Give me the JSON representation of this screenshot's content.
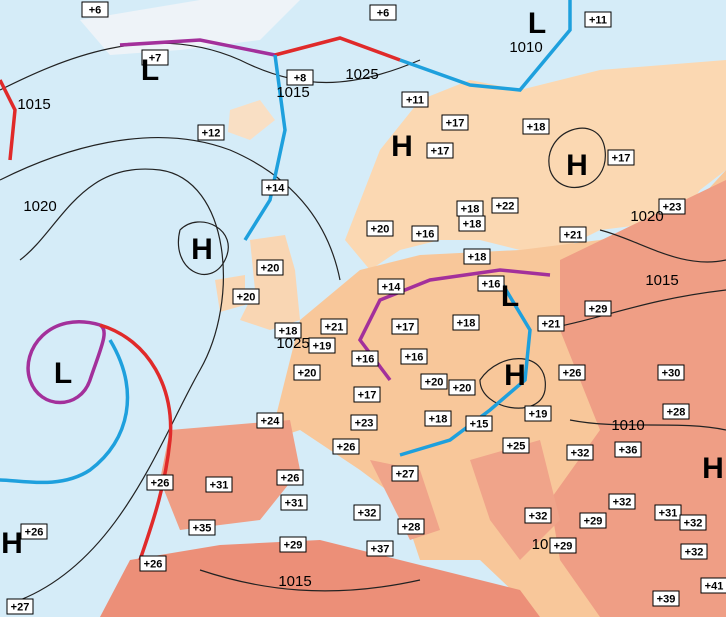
{
  "temperatures": [
    "+6",
    "+6",
    "+11",
    "+7",
    "+8",
    "+11",
    "+12",
    "+17",
    "+18",
    "+17",
    "+17",
    "+14",
    "+18",
    "+22",
    "+18",
    "+20",
    "+16",
    "+23",
    "+21",
    "+18",
    "+20",
    "+14",
    "+16",
    "+20",
    "+29",
    "+21",
    "+17",
    "+18",
    "+21",
    "+18",
    "+19",
    "+16",
    "+16",
    "+20",
    "+20",
    "+20",
    "+26",
    "+30",
    "+17",
    "+19",
    "+28",
    "+24",
    "+18",
    "+15",
    "+23",
    "+26",
    "+25",
    "+32",
    "+36",
    "+26",
    "+31",
    "+26",
    "+27",
    "+31",
    "+32",
    "+31",
    "+32",
    "+35",
    "+28",
    "+32",
    "+29",
    "+32",
    "+26",
    "+29",
    "+29",
    "+32",
    "+37",
    "+26",
    "+41",
    "+39",
    "+27"
  ],
  "pressure_centers": [
    "L",
    "L",
    "H",
    "H",
    "H",
    "L",
    "H",
    "L",
    "H",
    "H"
  ],
  "isobar_labels": [
    "1010",
    "1025",
    "1015",
    "1015",
    "1020",
    "1020",
    "1015",
    "1025",
    "1010",
    "1015",
    "10"
  ]
}
